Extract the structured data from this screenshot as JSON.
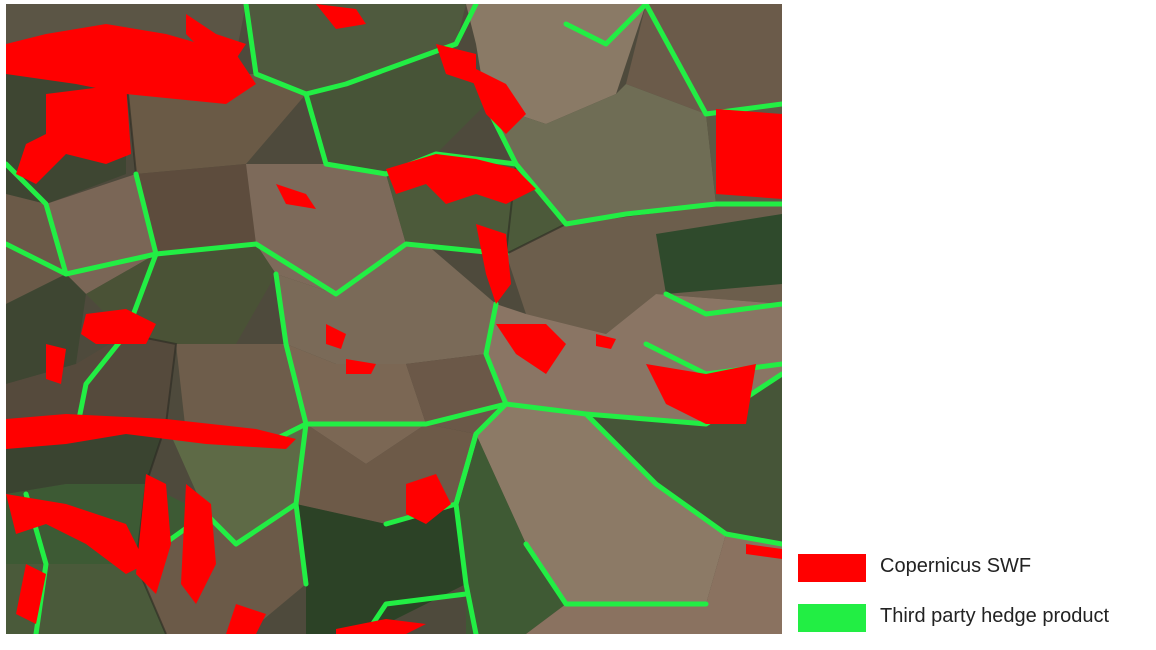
{
  "map": {
    "colors": {
      "swf": "#ff0000",
      "hedge": "#22ee44"
    }
  },
  "legend": {
    "items": [
      {
        "label": "Copernicus SWF",
        "color": "#ff0000"
      },
      {
        "label": "Third party hedge product",
        "color": "#22ee44"
      }
    ]
  }
}
